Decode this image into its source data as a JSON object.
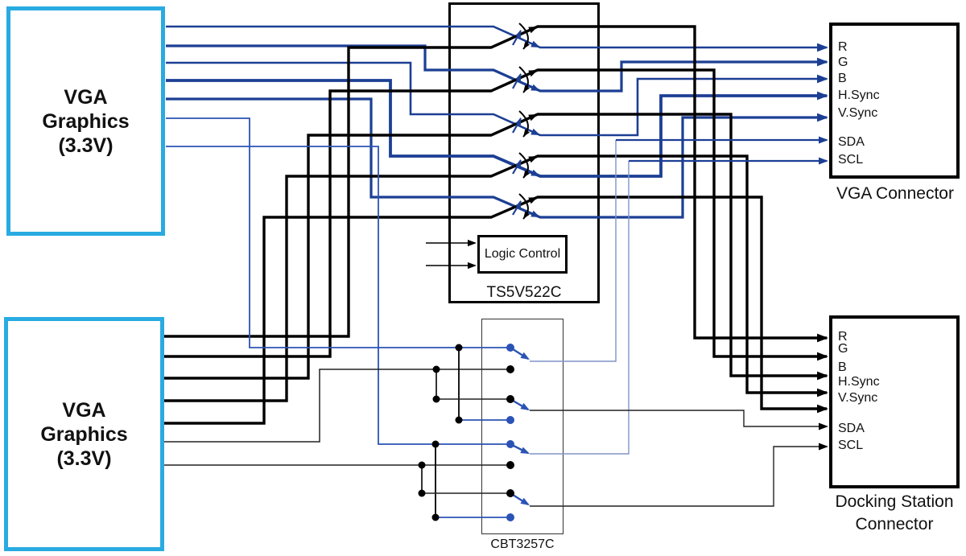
{
  "colors": {
    "cyan": "#29ABE2",
    "navy": "#1C3F94",
    "black": "#000000",
    "royal": "#2B53B5",
    "light_blue": "#8094C9",
    "thin_black": "#222222"
  },
  "blocks": {
    "vga_graphics_top": {
      "lines": [
        "VGA",
        "Graphics",
        "(3.3V)"
      ]
    },
    "vga_graphics_bottom": {
      "lines": [
        "VGA",
        "Graphics",
        "(3.3V)"
      ]
    },
    "ts_switch": {
      "label": "TS5V522C",
      "logic_label": "Logic Control"
    },
    "cbt_switch": {
      "label": "CBT3257C"
    },
    "vga_connector": {
      "caption": "VGA Connector",
      "pins": [
        "R",
        "G",
        "B",
        "H.Sync",
        "V.Sync",
        "SDA",
        "SCL"
      ]
    },
    "docking_connector": {
      "caption_lines": [
        "Docking Station",
        "Connector"
      ],
      "pins": [
        "R",
        "G",
        "B",
        "H.Sync",
        "V.Sync",
        "SDA",
        "SCL"
      ]
    }
  }
}
